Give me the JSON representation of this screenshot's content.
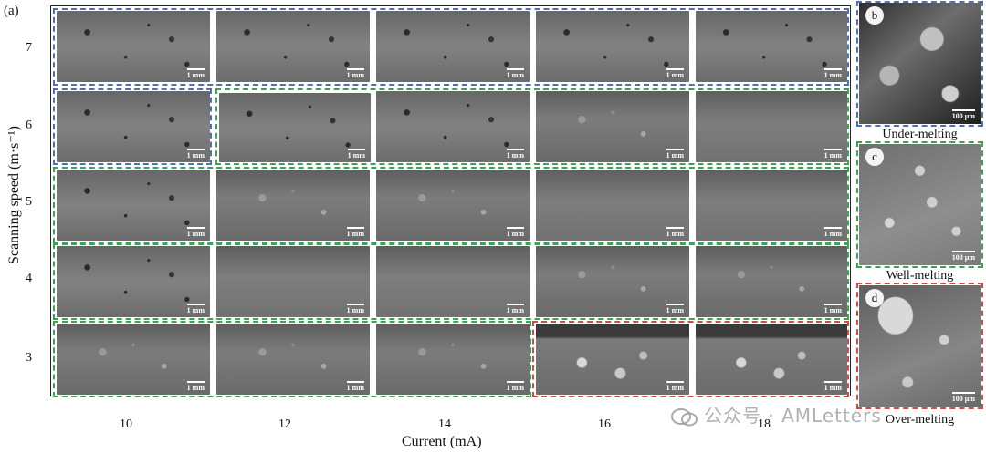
{
  "panel_label": "(a)",
  "y_axis_label": "Scanning speed (m·s⁻¹)",
  "x_axis_label": "Current (mA)",
  "y_ticks": [
    "7",
    "6",
    "5",
    "4",
    "3"
  ],
  "x_ticks": [
    "10",
    "12",
    "14",
    "16",
    "18"
  ],
  "tile_scale": "1 mm",
  "panels": [
    {
      "letter": "b",
      "scale": "100 μm",
      "caption": "Under-melting"
    },
    {
      "letter": "c",
      "scale": "100 μm",
      "caption": "Well-melting"
    },
    {
      "letter": "d",
      "scale": "100 μm",
      "caption": "Over-melting"
    }
  ],
  "watermark": "公众号 · AMLetters",
  "colors": {
    "under": "#4f6fb8",
    "well": "#3ba353",
    "over": "#d04a4a"
  }
}
